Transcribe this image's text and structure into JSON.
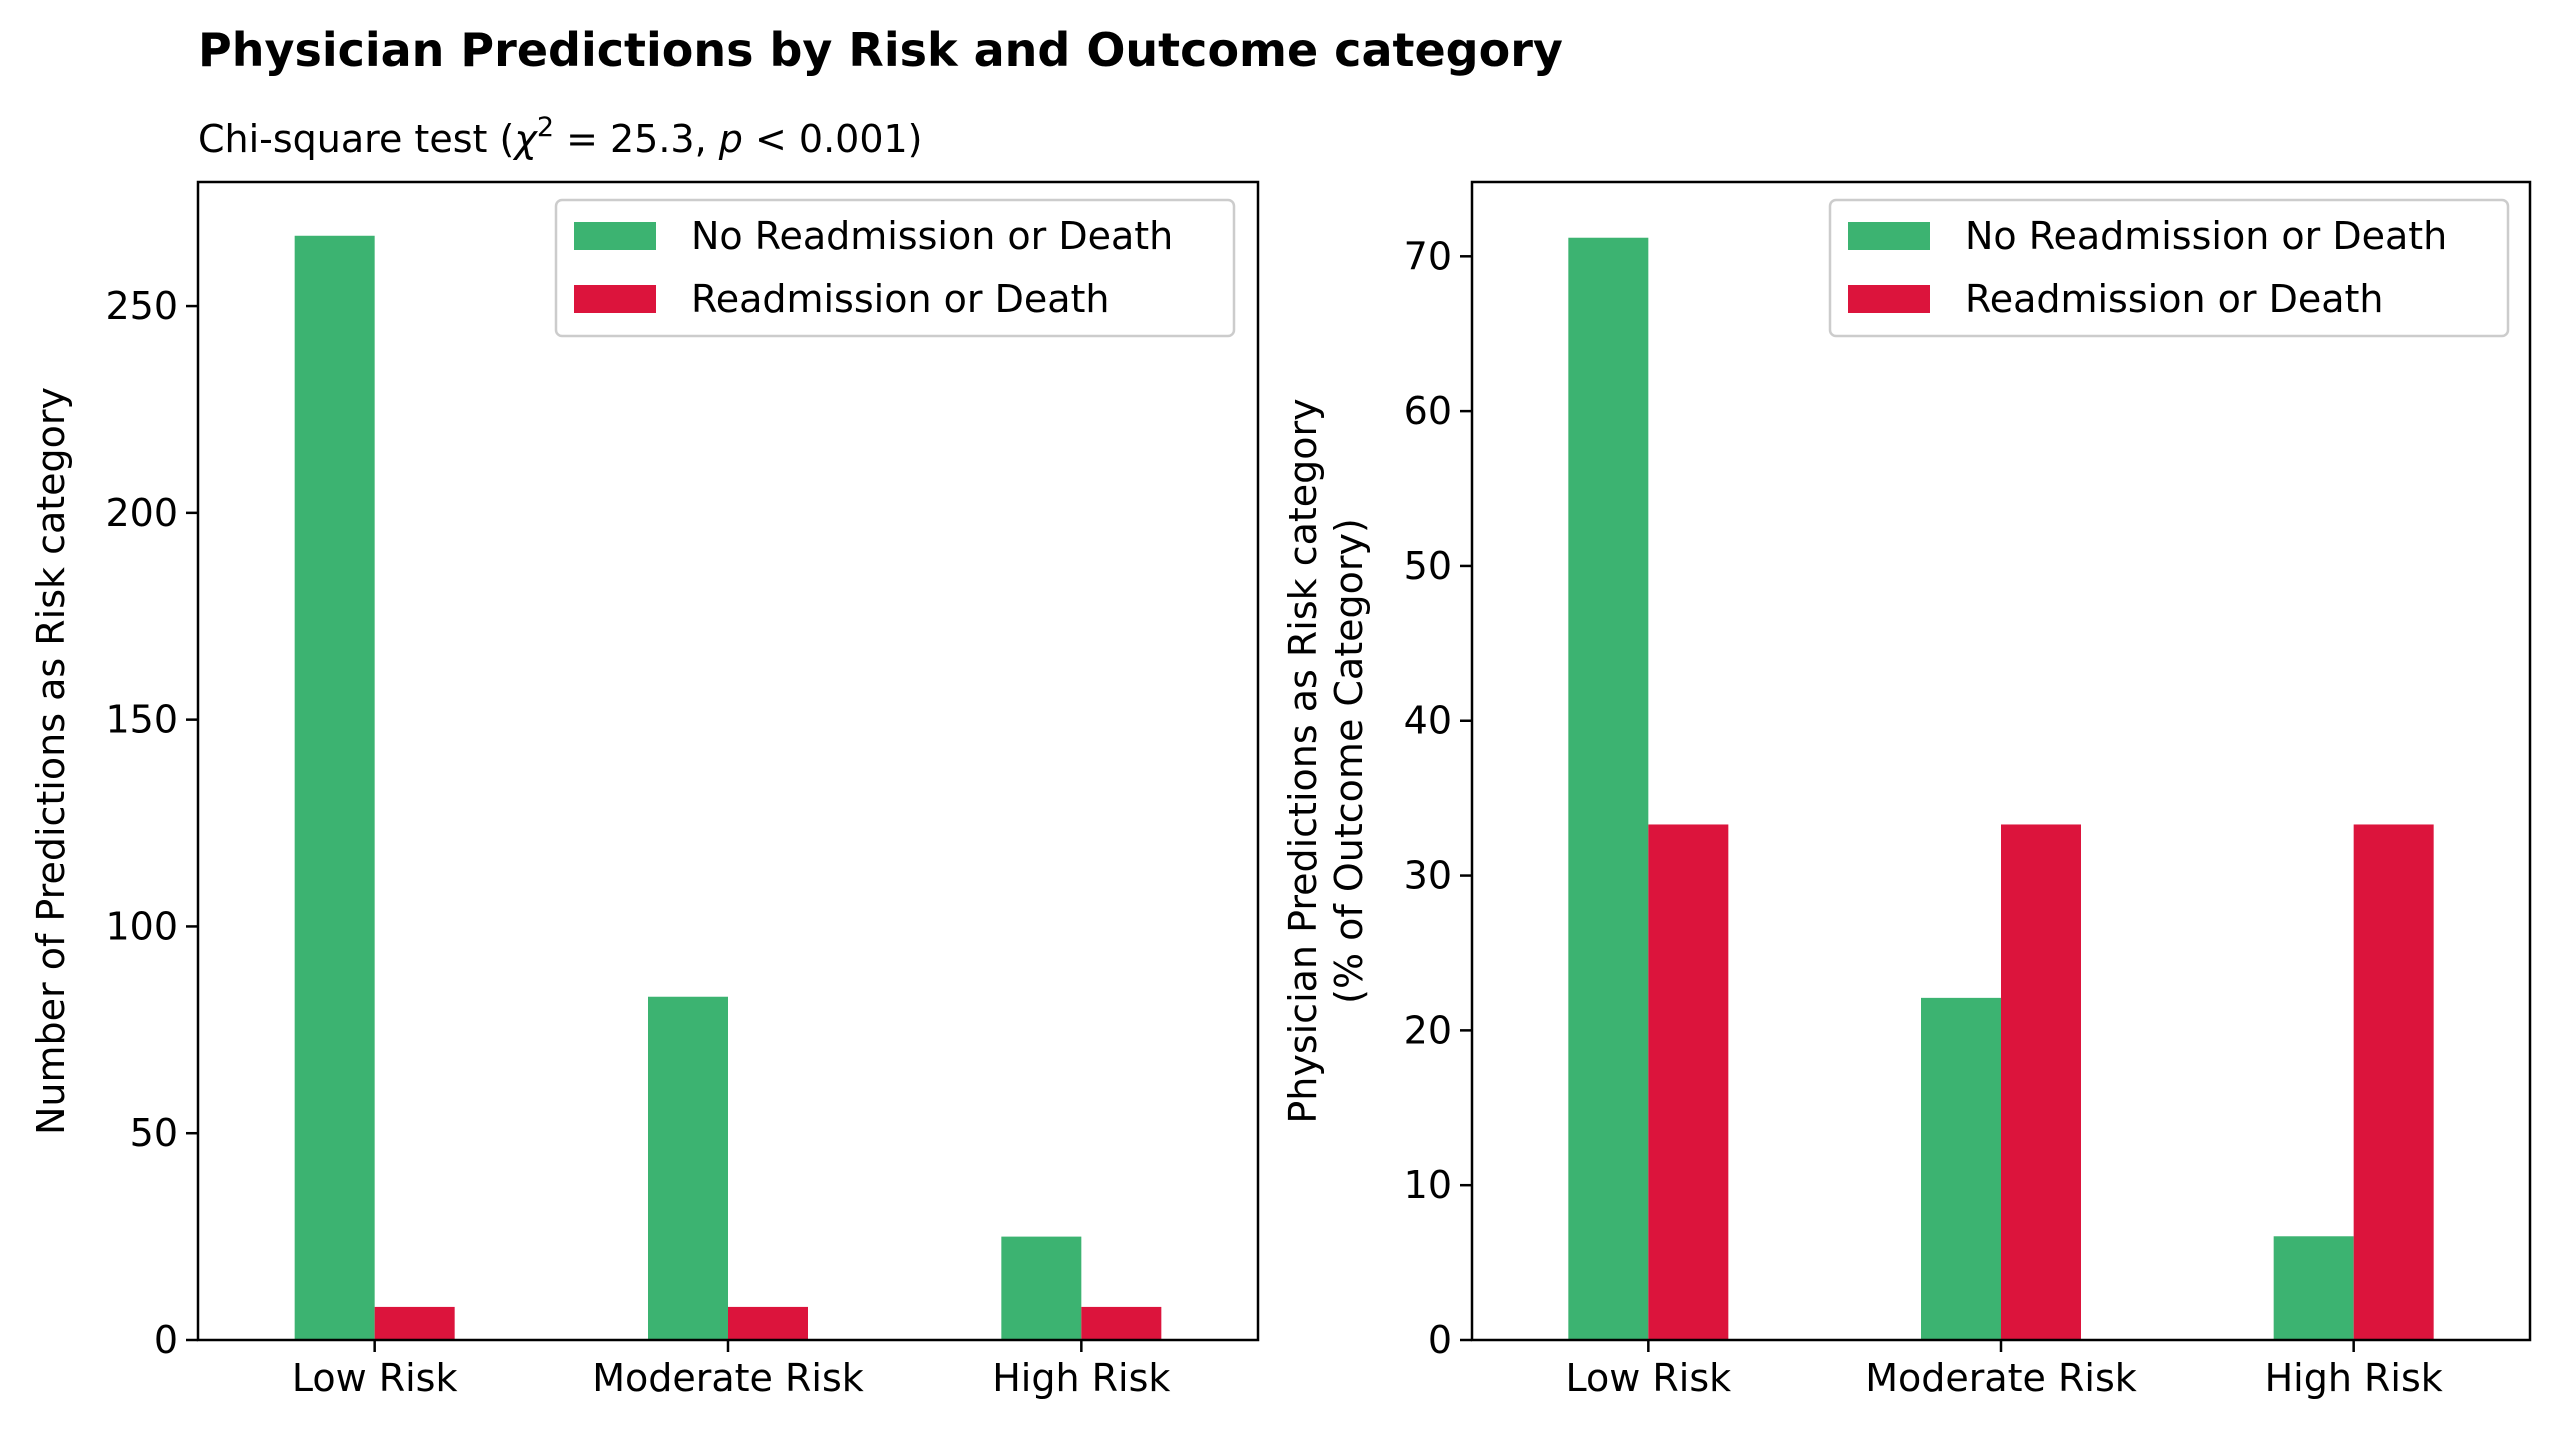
{
  "figure": {
    "title": "Physician Predictions by Risk and Outcome category",
    "subtitle_prefix": "Chi-square test (",
    "subtitle_chi": "χ",
    "subtitle_sup": "2",
    "subtitle_stat": " = 25.3, ",
    "subtitle_p": "p",
    "subtitle_rest": " < 0.001)"
  },
  "chart_data": [
    {
      "type": "bar",
      "title": "",
      "xlabel": "",
      "ylabel": "Number of Predictions as Risk category",
      "categories": [
        "Low Risk",
        "Moderate Risk",
        "High Risk"
      ],
      "ylim": [
        0,
        280
      ],
      "yticks": [
        0,
        50,
        100,
        150,
        200,
        250
      ],
      "grid": false,
      "legend_position": "top-right",
      "series": [
        {
          "name": "No Readmission or Death",
          "color": "#3cb371",
          "values": [
            267,
            83,
            25
          ]
        },
        {
          "name": "Readmission or Death",
          "color": "#dc143c",
          "values": [
            8,
            8,
            8
          ]
        }
      ]
    },
    {
      "type": "bar",
      "title": "",
      "xlabel": "",
      "ylabel": [
        "Physician Predictions as Risk category",
        "(% of Outcome Category)"
      ],
      "categories": [
        "Low Risk",
        "Moderate Risk",
        "High Risk"
      ],
      "ylim": [
        0,
        74.8
      ],
      "yticks": [
        0,
        10,
        20,
        30,
        40,
        50,
        60,
        70
      ],
      "grid": false,
      "legend_position": "top-right",
      "series": [
        {
          "name": "No Readmission or Death",
          "color": "#3cb371",
          "values": [
            71.2,
            22.1,
            6.7
          ]
        },
        {
          "name": "Readmission or Death",
          "color": "#dc143c",
          "values": [
            33.3,
            33.3,
            33.3
          ]
        }
      ]
    }
  ]
}
